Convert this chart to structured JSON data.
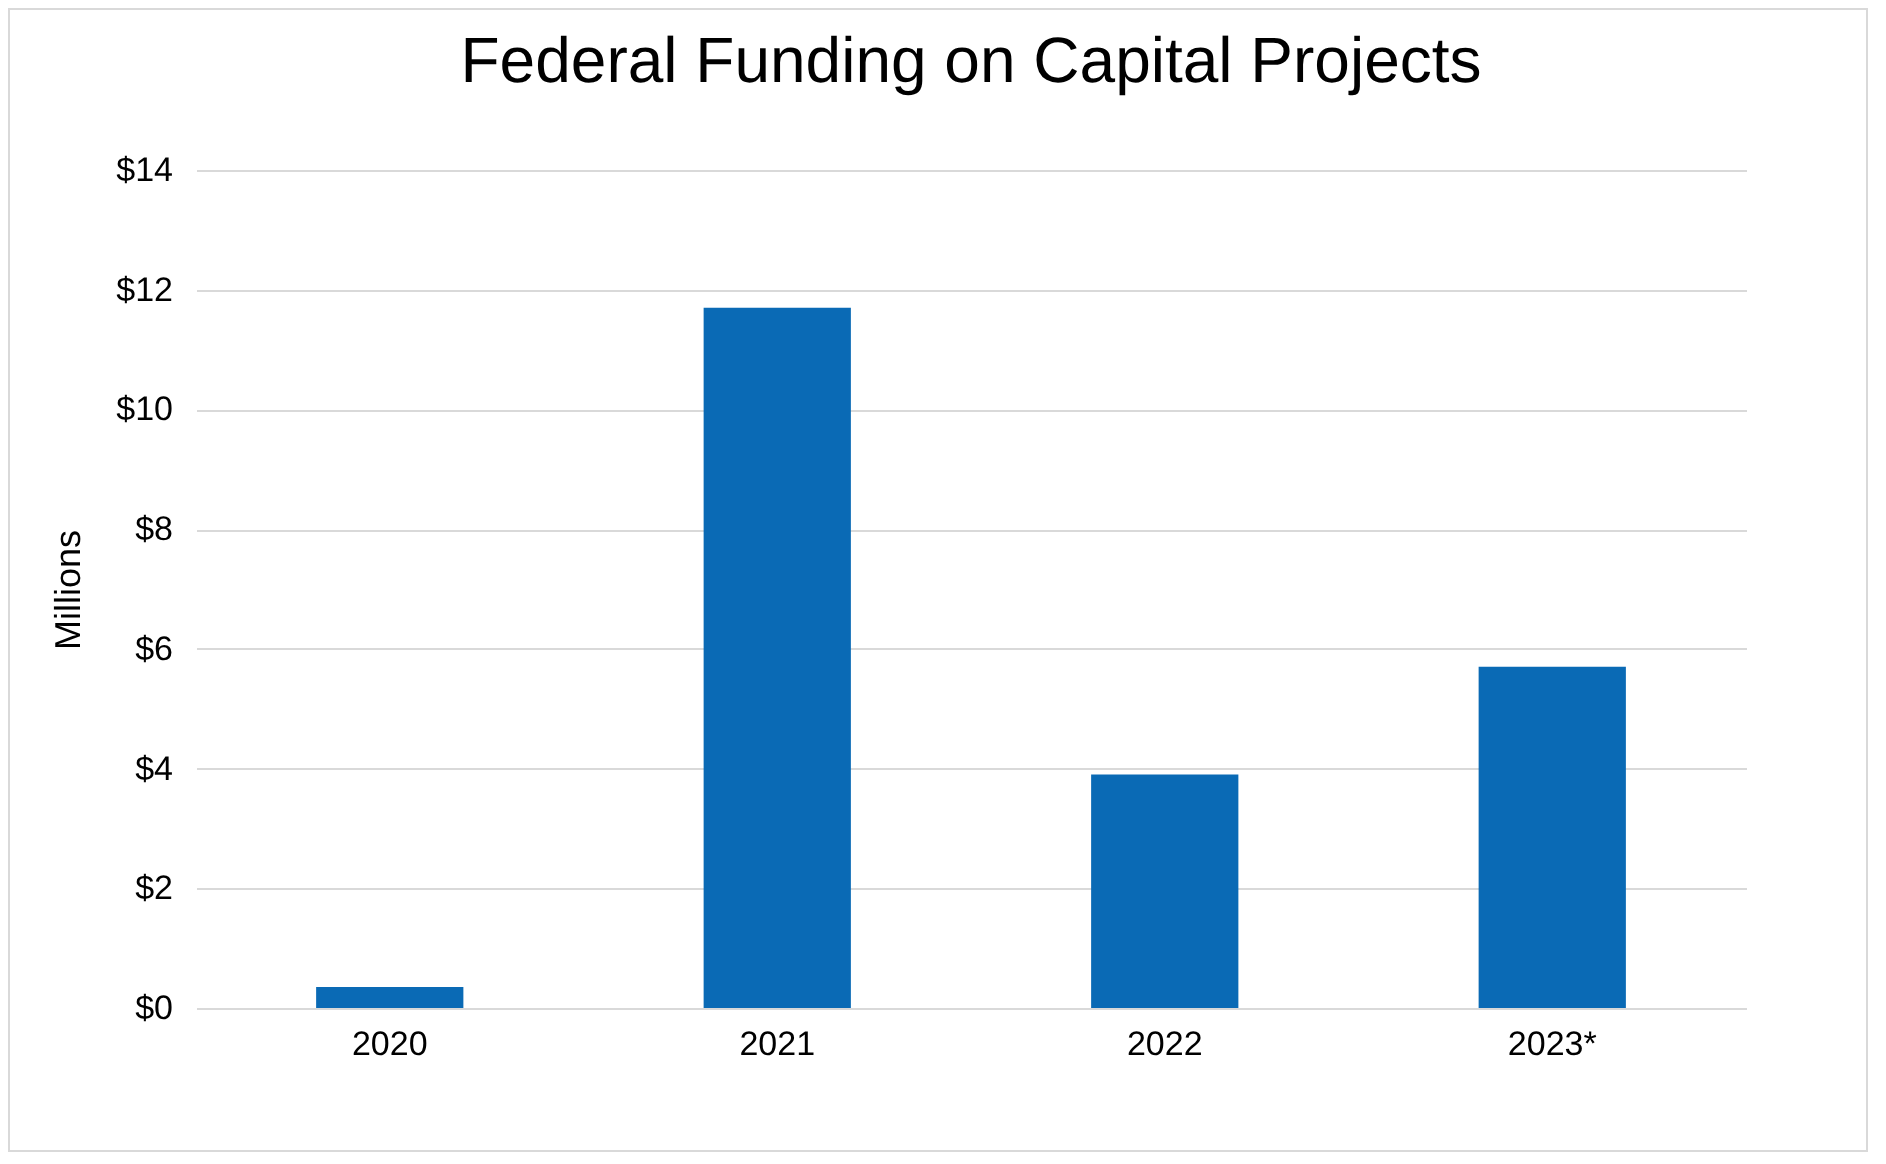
{
  "chart_data": {
    "type": "bar",
    "title": "Federal Funding on Capital Projects",
    "ylabel": "Millions",
    "categories": [
      "2020",
      "2021",
      "2022",
      "2023*"
    ],
    "values": [
      0.35,
      11.7,
      3.9,
      5.7
    ],
    "color": "#0a6ab5",
    "ylim": [
      0,
      14
    ],
    "yticks": [
      {
        "value": 0,
        "label": "$0"
      },
      {
        "value": 2,
        "label": "$2"
      },
      {
        "value": 4,
        "label": "$4"
      },
      {
        "value": 6,
        "label": "$6"
      },
      {
        "value": 8,
        "label": "$8"
      },
      {
        "value": 10,
        "label": "$10"
      },
      {
        "value": 12,
        "label": "$12"
      },
      {
        "value": 14,
        "label": "$14"
      }
    ],
    "grid": "y"
  }
}
